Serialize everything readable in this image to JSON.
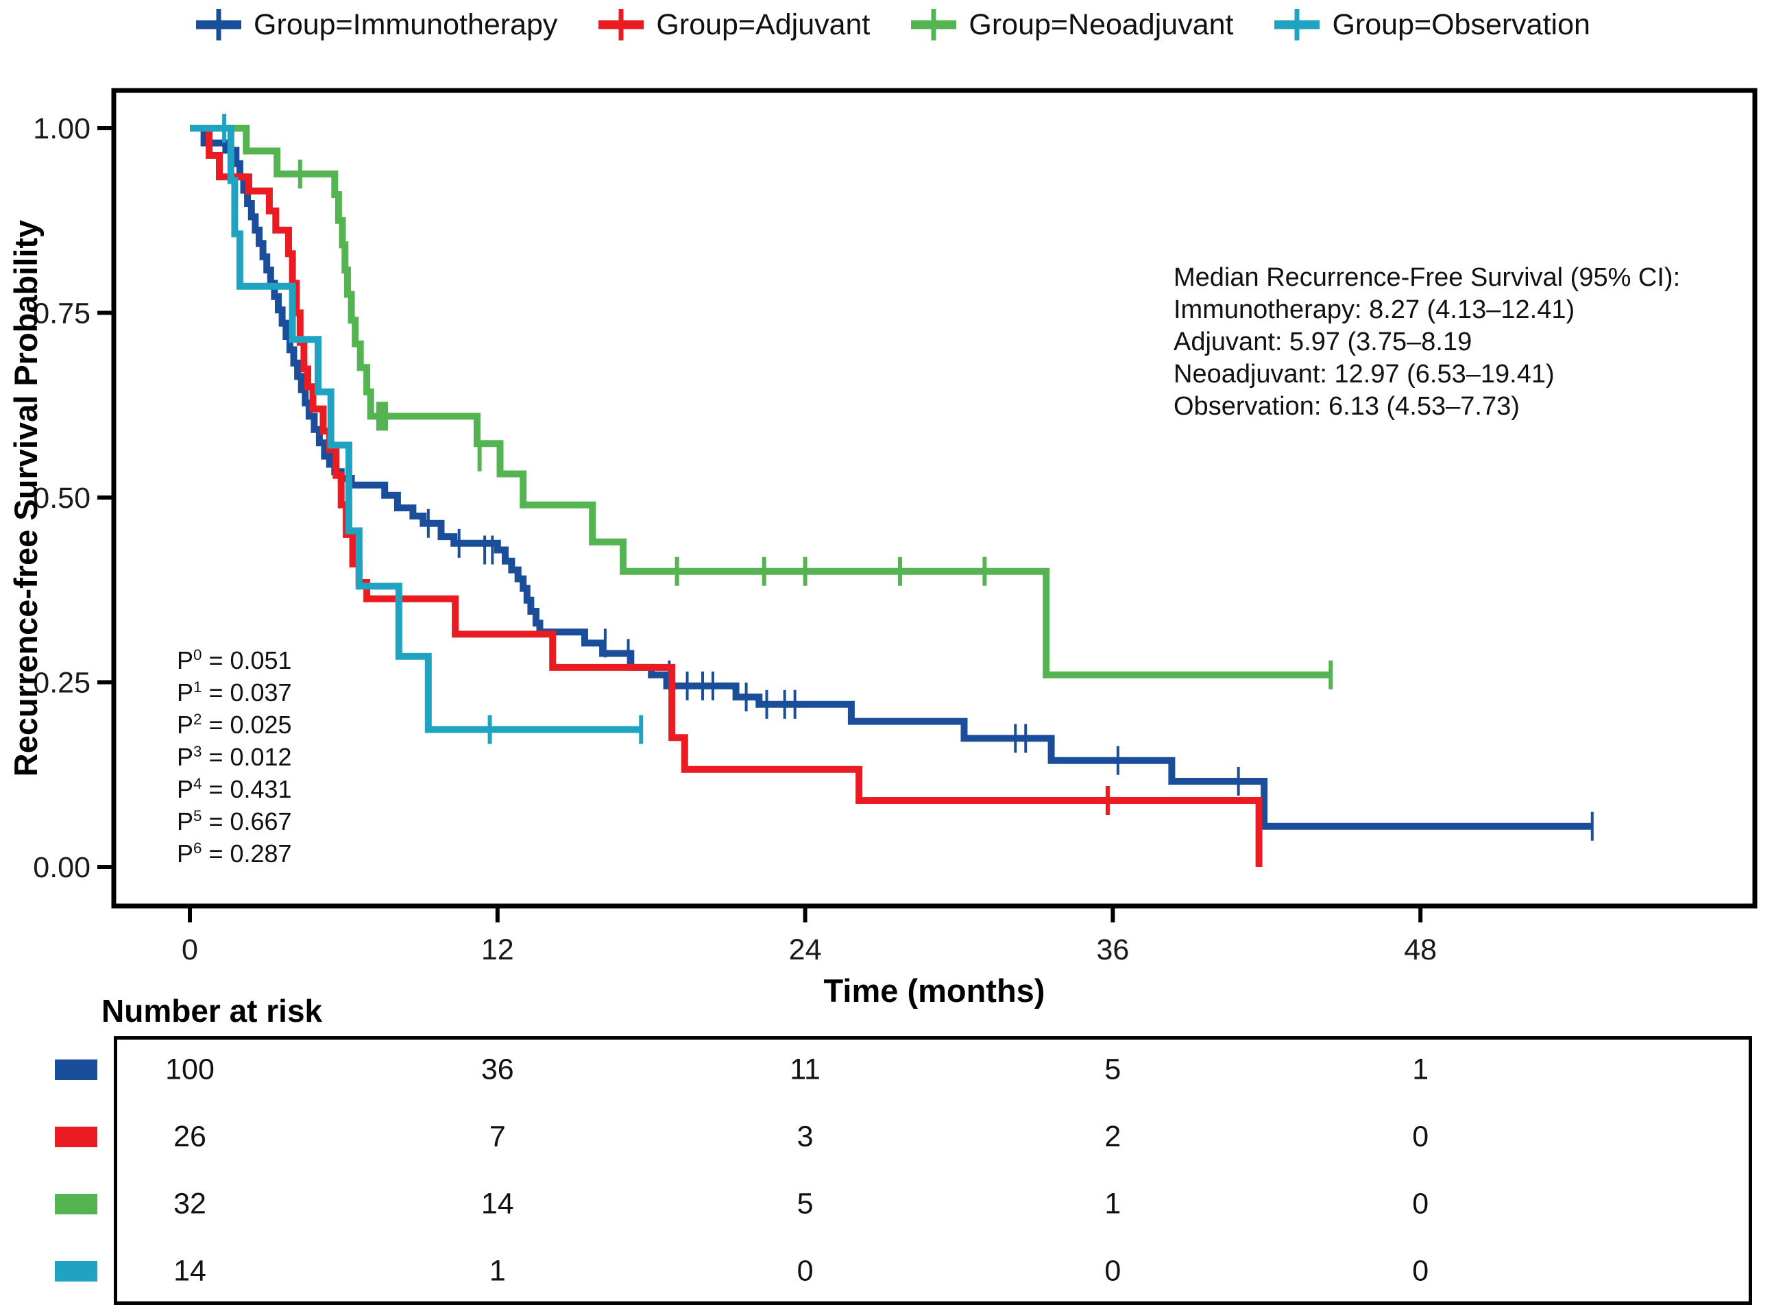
{
  "chart_data": {
    "type": "line",
    "subtype": "kaplan_meier_step",
    "title": "",
    "xlabel": "Time (months)",
    "ylabel": "Recurrence-free Survival Probability",
    "xlim": [
      0,
      61
    ],
    "ylim": [
      0,
      1
    ],
    "xticks": [
      0,
      12,
      24,
      36,
      48
    ],
    "ytick_labels": [
      "1.00",
      "0.75",
      "0.50",
      "0.25",
      "0.00"
    ],
    "ytick_values": [
      1,
      0.75,
      0.5,
      0.25,
      0
    ],
    "grid": false,
    "legend_position": "top",
    "series": [
      {
        "name": "Immunotherapy",
        "label": "Group=Immunotherapy",
        "color": "#1a4e9a",
        "points": [
          [
            0,
            1
          ],
          [
            0.55,
            0.98
          ],
          [
            1.4,
            0.97
          ],
          [
            1.8,
            0.952
          ],
          [
            1.95,
            0.934
          ],
          [
            2.1,
            0.916
          ],
          [
            2.25,
            0.898
          ],
          [
            2.4,
            0.88
          ],
          [
            2.55,
            0.862
          ],
          [
            2.7,
            0.844
          ],
          [
            2.85,
            0.826
          ],
          [
            3.0,
            0.808
          ],
          [
            3.15,
            0.79
          ],
          [
            3.3,
            0.772
          ],
          [
            3.45,
            0.754
          ],
          [
            3.6,
            0.736
          ],
          [
            3.75,
            0.718
          ],
          [
            3.9,
            0.7
          ],
          [
            4.05,
            0.682
          ],
          [
            4.2,
            0.664
          ],
          [
            4.35,
            0.646
          ],
          [
            4.5,
            0.628
          ],
          [
            4.65,
            0.61
          ],
          [
            4.85,
            0.592
          ],
          [
            5.05,
            0.574
          ],
          [
            5.25,
            0.556
          ],
          [
            5.45,
            0.545
          ],
          [
            5.65,
            0.535
          ],
          [
            5.9,
            0.526
          ],
          [
            6.3,
            0.517
          ],
          [
            7.6,
            0.503
          ],
          [
            8.1,
            0.486
          ],
          [
            8.7,
            0.475
          ],
          [
            9.1,
            0.465
          ],
          [
            9.8,
            0.447
          ],
          [
            10.3,
            0.438
          ],
          [
            12.0,
            0.429
          ],
          [
            12.3,
            0.414
          ],
          [
            12.55,
            0.402
          ],
          [
            12.8,
            0.39
          ],
          [
            13.0,
            0.377
          ],
          [
            13.15,
            0.361
          ],
          [
            13.3,
            0.346
          ],
          [
            13.5,
            0.33
          ],
          [
            13.65,
            0.318
          ],
          [
            15.4,
            0.303
          ],
          [
            16.1,
            0.289
          ],
          [
            17.2,
            0.27
          ],
          [
            18.0,
            0.26
          ],
          [
            18.6,
            0.245
          ],
          [
            21.3,
            0.23
          ],
          [
            22.2,
            0.22
          ],
          [
            25.8,
            0.197
          ],
          [
            30.2,
            0.174
          ],
          [
            33.6,
            0.144
          ],
          [
            38.3,
            0.116
          ],
          [
            41.9,
            0.055
          ],
          [
            54.7,
            0.055
          ]
        ],
        "censors": [
          [
            9.3,
            0.465
          ],
          [
            10.5,
            0.438
          ],
          [
            11.5,
            0.429
          ],
          [
            11.8,
            0.429
          ],
          [
            16.2,
            0.303
          ],
          [
            17.1,
            0.289
          ],
          [
            18.7,
            0.26
          ],
          [
            19.4,
            0.245
          ],
          [
            20.0,
            0.245
          ],
          [
            20.4,
            0.245
          ],
          [
            21.7,
            0.23
          ],
          [
            22.5,
            0.22
          ],
          [
            23.2,
            0.22
          ],
          [
            23.6,
            0.22
          ],
          [
            32.2,
            0.174
          ],
          [
            32.6,
            0.174
          ],
          [
            36.2,
            0.144
          ],
          [
            40.9,
            0.116
          ],
          [
            54.7,
            0.055
          ]
        ],
        "median_text": "Immunotherapy: 8.27 (4.13–12.41)"
      },
      {
        "name": "Adjuvant",
        "label": "Group=Adjuvant",
        "color": "#ea1c22",
        "points": [
          [
            0,
            1
          ],
          [
            0.75,
            0.963
          ],
          [
            1.15,
            0.934
          ],
          [
            2.3,
            0.915
          ],
          [
            3.1,
            0.888
          ],
          [
            3.35,
            0.862
          ],
          [
            3.85,
            0.83
          ],
          [
            4.0,
            0.79
          ],
          [
            4.15,
            0.75
          ],
          [
            4.3,
            0.71
          ],
          [
            4.45,
            0.674
          ],
          [
            4.6,
            0.65
          ],
          [
            4.8,
            0.62
          ],
          [
            5.2,
            0.59
          ],
          [
            5.45,
            0.565
          ],
          [
            5.7,
            0.53
          ],
          [
            5.9,
            0.49
          ],
          [
            6.1,
            0.45
          ],
          [
            6.35,
            0.41
          ],
          [
            6.6,
            0.385
          ],
          [
            6.9,
            0.363
          ],
          [
            10.35,
            0.315
          ],
          [
            14.15,
            0.27
          ],
          [
            18.8,
            0.175
          ],
          [
            19.3,
            0.132
          ],
          [
            26.1,
            0.09
          ],
          [
            41.7,
            0
          ]
        ],
        "censors": [
          [
            35.8,
            0.09
          ]
        ],
        "median_text": "Adjuvant: 5.97 (3.75–8.19"
      },
      {
        "name": "Neoadjuvant",
        "label": "Group=Neoadjuvant",
        "color": "#55b452",
        "points": [
          [
            0,
            1
          ],
          [
            2.2,
            0.969
          ],
          [
            3.4,
            0.938
          ],
          [
            5.65,
            0.91
          ],
          [
            5.8,
            0.875
          ],
          [
            5.95,
            0.842
          ],
          [
            6.05,
            0.808
          ],
          [
            6.15,
            0.775
          ],
          [
            6.3,
            0.74
          ],
          [
            6.45,
            0.708
          ],
          [
            6.65,
            0.676
          ],
          [
            6.9,
            0.643
          ],
          [
            7.05,
            0.61
          ],
          [
            11.2,
            0.573
          ],
          [
            12.1,
            0.532
          ],
          [
            13.0,
            0.49
          ],
          [
            15.7,
            0.44
          ],
          [
            16.9,
            0.4
          ],
          [
            33.4,
            0.26
          ],
          [
            44.5,
            0.26
          ]
        ],
        "censors": [
          [
            4.3,
            0.938
          ],
          [
            7.35,
            0.61
          ],
          [
            7.5,
            0.61
          ],
          [
            7.65,
            0.61
          ],
          [
            11.3,
            0.555
          ],
          [
            19.0,
            0.4
          ],
          [
            22.4,
            0.4
          ],
          [
            24.0,
            0.4
          ],
          [
            27.7,
            0.4
          ],
          [
            31.0,
            0.4
          ],
          [
            44.5,
            0.26
          ]
        ],
        "median_text": "Neoadjuvant: 12.97 (6.53–19.41)"
      },
      {
        "name": "Observation",
        "label": "Group=Observation",
        "color": "#20a3c1",
        "points": [
          [
            0,
            1
          ],
          [
            1.6,
            0.929
          ],
          [
            1.75,
            0.857
          ],
          [
            1.95,
            0.786
          ],
          [
            4.0,
            0.714
          ],
          [
            5.0,
            0.643
          ],
          [
            5.5,
            0.571
          ],
          [
            6.2,
            0.455
          ],
          [
            6.6,
            0.38
          ],
          [
            8.15,
            0.285
          ],
          [
            9.3,
            0.186
          ],
          [
            17.6,
            0.186
          ]
        ],
        "censors": [
          [
            1.34,
            1.0
          ],
          [
            11.7,
            0.186
          ],
          [
            17.6,
            0.186
          ]
        ],
        "median_text": "Observation: 6.13 (4.53–7.73)"
      }
    ],
    "annotation": {
      "lines": [
        "Median Recurrence-Free Survival (95% CI):",
        "Immunotherapy: 8.27 (4.13–12.41)",
        "Adjuvant: 5.97 (3.75–8.19",
        "Neoadjuvant: 12.97 (6.53–19.41)",
        "Observation: 6.13 (4.53–7.73)"
      ]
    },
    "pvalues": [
      {
        "base": "P",
        "sup": "0",
        "rest": " = 0.051"
      },
      {
        "base": "P",
        "sup": "1",
        "rest": " = 0.037"
      },
      {
        "base": "P",
        "sup": "2",
        "rest": " = 0.025"
      },
      {
        "base": "P",
        "sup": "3",
        "rest": " = 0.012"
      },
      {
        "base": "P",
        "sup": "4",
        "rest": " = 0.431"
      },
      {
        "base": "P",
        "sup": "5",
        "rest": " = 0.667"
      },
      {
        "base": "P",
        "sup": "6",
        "rest": " = 0.287"
      }
    ],
    "risk_table": {
      "title": "Number at risk",
      "times": [
        0,
        12,
        24,
        36,
        48
      ],
      "rows": [
        {
          "group": "Immunotherapy",
          "color": "#1a4e9a",
          "counts": [
            100,
            36,
            11,
            5,
            1
          ]
        },
        {
          "group": "Adjuvant",
          "color": "#ea1c22",
          "counts": [
            26,
            7,
            3,
            2,
            0
          ]
        },
        {
          "group": "Neoadjuvant",
          "color": "#55b452",
          "counts": [
            32,
            14,
            5,
            1,
            0
          ]
        },
        {
          "group": "Observation",
          "color": "#20a3c1",
          "counts": [
            14,
            1,
            0,
            0,
            0
          ]
        }
      ]
    }
  }
}
